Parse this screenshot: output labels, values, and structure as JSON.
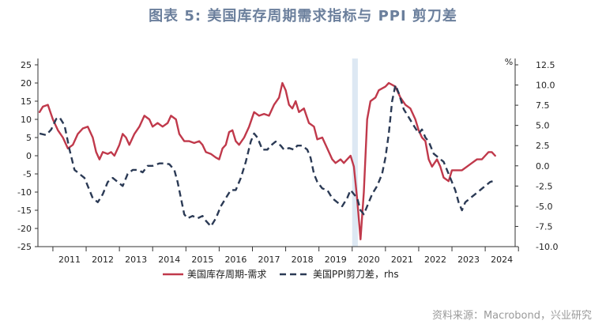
{
  "title": "图表 5:  美国库存周期需求指标与 PPI 剪刀差",
  "source": "资料来源：Macrobond，兴业研究",
  "chart_data": {
    "type": "line",
    "x_range": [
      2010.55,
      2024.9
    ],
    "left_axis": {
      "ylim": [
        -25,
        25
      ],
      "ticks": [
        "25",
        "20",
        "15",
        "10",
        "5",
        "0",
        "-5",
        "-10",
        "-15",
        "-20",
        "-25"
      ]
    },
    "right_axis": {
      "unit": "%",
      "ylim": [
        -10,
        12.5
      ],
      "ticks": [
        "12.5",
        "10.0",
        "7.5",
        "5.0",
        "2.5",
        "0.0",
        "-2.5",
        "-5.0",
        "-7.5",
        "-10.0"
      ]
    },
    "x_ticks": [
      "2011",
      "2012",
      "2013",
      "2014",
      "2015",
      "2016",
      "2017",
      "2018",
      "2019",
      "2020",
      "2021",
      "2022",
      "2023",
      "2024"
    ],
    "shaded_region": [
      2020.0,
      2020.17
    ],
    "colors": {
      "series1": "#c0394b",
      "series2": "#2b3a55",
      "shade": "#dde8f3"
    },
    "series": [
      {
        "name": "美国库存周期-需求",
        "axis": "left",
        "style": "solid",
        "points": [
          [
            2010.6,
            12
          ],
          [
            2010.7,
            13.5
          ],
          [
            2010.85,
            14
          ],
          [
            2011.0,
            10
          ],
          [
            2011.15,
            7
          ],
          [
            2011.3,
            5
          ],
          [
            2011.45,
            2
          ],
          [
            2011.6,
            3
          ],
          [
            2011.75,
            6
          ],
          [
            2011.9,
            7.5
          ],
          [
            2012.05,
            8
          ],
          [
            2012.2,
            5
          ],
          [
            2012.3,
            1
          ],
          [
            2012.4,
            -1
          ],
          [
            2012.5,
            1
          ],
          [
            2012.65,
            0.5
          ],
          [
            2012.75,
            1
          ],
          [
            2012.85,
            0
          ],
          [
            2013.0,
            3
          ],
          [
            2013.1,
            6
          ],
          [
            2013.2,
            5
          ],
          [
            2013.3,
            3
          ],
          [
            2013.45,
            6
          ],
          [
            2013.6,
            8
          ],
          [
            2013.75,
            11
          ],
          [
            2013.9,
            10
          ],
          [
            2014.0,
            8
          ],
          [
            2014.15,
            9
          ],
          [
            2014.3,
            8
          ],
          [
            2014.45,
            9
          ],
          [
            2014.55,
            11
          ],
          [
            2014.7,
            10
          ],
          [
            2014.8,
            6
          ],
          [
            2014.95,
            4
          ],
          [
            2015.1,
            4
          ],
          [
            2015.25,
            3.5
          ],
          [
            2015.4,
            4
          ],
          [
            2015.5,
            3
          ],
          [
            2015.6,
            1
          ],
          [
            2015.75,
            0.5
          ],
          [
            2015.9,
            -0.5
          ],
          [
            2016.0,
            -1
          ],
          [
            2016.1,
            2
          ],
          [
            2016.2,
            3
          ],
          [
            2016.3,
            6.5
          ],
          [
            2016.4,
            7
          ],
          [
            2016.5,
            4
          ],
          [
            2016.6,
            3
          ],
          [
            2016.75,
            5
          ],
          [
            2016.9,
            8
          ],
          [
            2017.05,
            12
          ],
          [
            2017.2,
            11
          ],
          [
            2017.35,
            11.5
          ],
          [
            2017.5,
            11
          ],
          [
            2017.65,
            14
          ],
          [
            2017.8,
            16
          ],
          [
            2017.9,
            20
          ],
          [
            2018.0,
            18
          ],
          [
            2018.1,
            14
          ],
          [
            2018.2,
            13
          ],
          [
            2018.3,
            15
          ],
          [
            2018.4,
            12
          ],
          [
            2018.55,
            13
          ],
          [
            2018.7,
            9
          ],
          [
            2018.85,
            8
          ],
          [
            2018.95,
            4.5
          ],
          [
            2019.1,
            5
          ],
          [
            2019.25,
            2
          ],
          [
            2019.4,
            -1
          ],
          [
            2019.5,
            -2
          ],
          [
            2019.65,
            -1
          ],
          [
            2019.75,
            -2
          ],
          [
            2019.85,
            -1
          ],
          [
            2019.95,
            0
          ],
          [
            2020.05,
            -3
          ],
          [
            2020.15,
            -12
          ],
          [
            2020.25,
            -23
          ],
          [
            2020.35,
            -10
          ],
          [
            2020.45,
            10
          ],
          [
            2020.55,
            15
          ],
          [
            2020.7,
            16
          ],
          [
            2020.8,
            18
          ],
          [
            2021.0,
            19
          ],
          [
            2021.1,
            20
          ],
          [
            2021.3,
            19
          ],
          [
            2021.45,
            16
          ],
          [
            2021.6,
            14
          ],
          [
            2021.75,
            13
          ],
          [
            2021.9,
            10
          ],
          [
            2022.0,
            7
          ],
          [
            2022.1,
            5
          ],
          [
            2022.2,
            4
          ],
          [
            2022.3,
            -1
          ],
          [
            2022.4,
            -3
          ],
          [
            2022.55,
            -1
          ],
          [
            2022.65,
            -3
          ],
          [
            2022.75,
            -6
          ],
          [
            2022.9,
            -7
          ],
          [
            2023.0,
            -4
          ],
          [
            2023.15,
            -4
          ],
          [
            2023.3,
            -4
          ],
          [
            2023.45,
            -3
          ],
          [
            2023.6,
            -2
          ],
          [
            2023.75,
            -1
          ],
          [
            2023.9,
            -1
          ],
          [
            2024.0,
            0
          ],
          [
            2024.1,
            1
          ],
          [
            2024.2,
            1
          ],
          [
            2024.3,
            0
          ]
        ]
      },
      {
        "name": "美国PPI剪刀差，rhs",
        "axis": "right",
        "style": "dashed",
        "points": [
          [
            2010.6,
            4
          ],
          [
            2010.8,
            3.8
          ],
          [
            2010.95,
            4.5
          ],
          [
            2011.1,
            5.8
          ],
          [
            2011.2,
            6
          ],
          [
            2011.35,
            5
          ],
          [
            2011.5,
            2
          ],
          [
            2011.65,
            -0.5
          ],
          [
            2011.8,
            -1
          ],
          [
            2011.95,
            -1.5
          ],
          [
            2012.05,
            -2.5
          ],
          [
            2012.2,
            -4
          ],
          [
            2012.35,
            -4.5
          ],
          [
            2012.5,
            -3.5
          ],
          [
            2012.65,
            -2
          ],
          [
            2012.8,
            -1.5
          ],
          [
            2012.95,
            -2
          ],
          [
            2013.1,
            -2.5
          ],
          [
            2013.25,
            -1
          ],
          [
            2013.4,
            -0.5
          ],
          [
            2013.55,
            -0.5
          ],
          [
            2013.7,
            -0.8
          ],
          [
            2013.85,
            0
          ],
          [
            2014.0,
            0
          ],
          [
            2014.2,
            0.3
          ],
          [
            2014.35,
            0.3
          ],
          [
            2014.5,
            0.2
          ],
          [
            2014.65,
            -0.5
          ],
          [
            2014.75,
            -2
          ],
          [
            2014.85,
            -4
          ],
          [
            2014.95,
            -6
          ],
          [
            2015.05,
            -6.5
          ],
          [
            2015.2,
            -6.2
          ],
          [
            2015.35,
            -6.5
          ],
          [
            2015.5,
            -6.2
          ],
          [
            2015.6,
            -6.8
          ],
          [
            2015.75,
            -7.5
          ],
          [
            2015.9,
            -6.5
          ],
          [
            2016.05,
            -5
          ],
          [
            2016.2,
            -4
          ],
          [
            2016.35,
            -3
          ],
          [
            2016.5,
            -3
          ],
          [
            2016.65,
            -1.5
          ],
          [
            2016.8,
            0.5
          ],
          [
            2016.95,
            3
          ],
          [
            2017.05,
            4
          ],
          [
            2017.15,
            3.5
          ],
          [
            2017.3,
            2
          ],
          [
            2017.45,
            2
          ],
          [
            2017.55,
            2.5
          ],
          [
            2017.7,
            3
          ],
          [
            2017.85,
            2.5
          ],
          [
            2017.95,
            2
          ],
          [
            2018.1,
            2.2
          ],
          [
            2018.25,
            2
          ],
          [
            2018.35,
            2.5
          ],
          [
            2018.5,
            2.5
          ],
          [
            2018.65,
            2
          ],
          [
            2018.75,
            1
          ],
          [
            2018.85,
            -1
          ],
          [
            2018.95,
            -2
          ],
          [
            2019.1,
            -2.8
          ],
          [
            2019.25,
            -3
          ],
          [
            2019.4,
            -4
          ],
          [
            2019.55,
            -4.5
          ],
          [
            2019.7,
            -5
          ],
          [
            2019.85,
            -4
          ],
          [
            2019.95,
            -3
          ],
          [
            2020.05,
            -3.5
          ],
          [
            2020.15,
            -4
          ],
          [
            2020.25,
            -5.5
          ],
          [
            2020.35,
            -6
          ],
          [
            2020.45,
            -5
          ],
          [
            2020.6,
            -3.5
          ],
          [
            2020.75,
            -2.5
          ],
          [
            2020.9,
            -1
          ],
          [
            2021.0,
            1
          ],
          [
            2021.1,
            4
          ],
          [
            2021.2,
            8
          ],
          [
            2021.3,
            10
          ],
          [
            2021.4,
            9
          ],
          [
            2021.55,
            7
          ],
          [
            2021.7,
            6
          ],
          [
            2021.85,
            5
          ],
          [
            2022.0,
            4
          ],
          [
            2022.1,
            4.5
          ],
          [
            2022.2,
            3.5
          ],
          [
            2022.3,
            3
          ],
          [
            2022.45,
            1.5
          ],
          [
            2022.6,
            1
          ],
          [
            2022.75,
            0.5
          ],
          [
            2022.9,
            -1
          ],
          [
            2023.0,
            -2
          ],
          [
            2023.1,
            -3
          ],
          [
            2023.2,
            -4.5
          ],
          [
            2023.3,
            -5.5
          ],
          [
            2023.4,
            -4.5
          ],
          [
            2023.55,
            -4
          ],
          [
            2023.7,
            -3.5
          ],
          [
            2023.85,
            -3
          ],
          [
            2024.0,
            -2.5
          ],
          [
            2024.15,
            -2
          ],
          [
            2024.3,
            -1.8
          ]
        ]
      }
    ]
  }
}
